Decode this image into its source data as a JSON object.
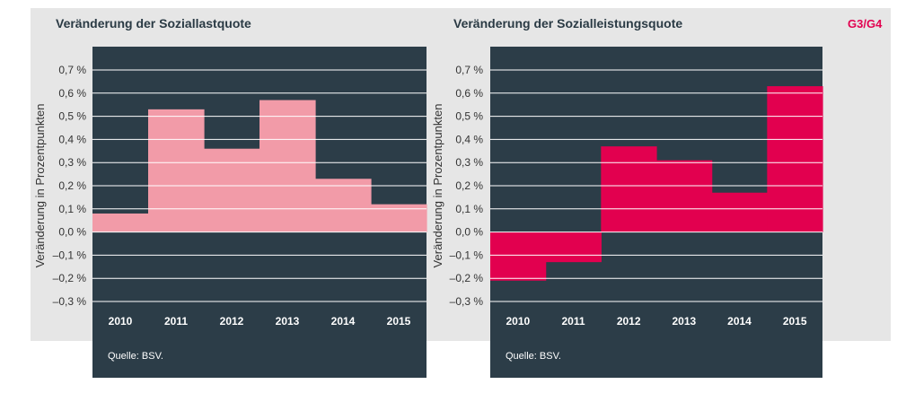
{
  "badge": "G3/G4",
  "chart_data": [
    {
      "type": "bar",
      "title": "Veränderung der Soziallastquote",
      "ylabel": "Veränderung in Prozentpunkten",
      "categories": [
        "2010",
        "2011",
        "2012",
        "2013",
        "2014",
        "2015"
      ],
      "values": [
        0.08,
        0.53,
        0.36,
        0.57,
        0.23,
        0.12
      ],
      "ylim": [
        -0.3,
        0.7
      ],
      "yticks": [
        0.7,
        0.6,
        0.5,
        0.4,
        0.3,
        0.2,
        0.1,
        0.0,
        -0.1,
        -0.2,
        -0.3
      ],
      "ytick_labels": [
        "0,7 %",
        "0,6 %",
        "0,5 %",
        "0,4 %",
        "0,3 %",
        "0,2 %",
        "0,1 %",
        "0,0 %",
        "–0,1 %",
        "–0,2 %",
        "–0,3 %"
      ],
      "grid": true,
      "color": "#f29ba8",
      "source": "Quelle: BSV."
    },
    {
      "type": "bar",
      "title": "Veränderung der Sozialleistungsquote",
      "ylabel": "Veränderung in Prozentpunkten",
      "categories": [
        "2010",
        "2011",
        "2012",
        "2013",
        "2014",
        "2015"
      ],
      "values": [
        -0.21,
        -0.13,
        0.37,
        0.31,
        0.17,
        0.63
      ],
      "ylim": [
        -0.3,
        0.7
      ],
      "yticks": [
        0.7,
        0.6,
        0.5,
        0.4,
        0.3,
        0.2,
        0.1,
        0.0,
        -0.1,
        -0.2,
        -0.3
      ],
      "ytick_labels": [
        "0,7 %",
        "0,6 %",
        "0,5 %",
        "0,4 %",
        "0,3 %",
        "0,2 %",
        "0,1 %",
        "0,0 %",
        "–0,1 %",
        "–0,2 %",
        "–0,3 %"
      ],
      "grid": true,
      "color": "#e2004f",
      "source": "Quelle: BSV."
    }
  ]
}
